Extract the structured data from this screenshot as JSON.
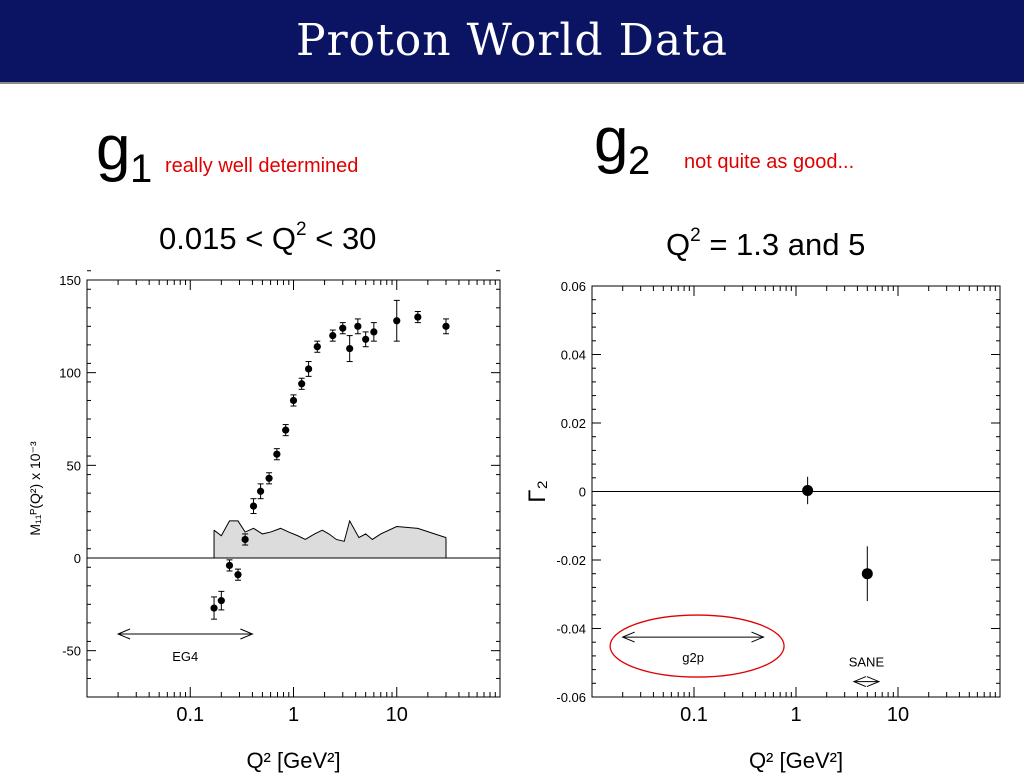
{
  "header": {
    "title": "Proton World Data"
  },
  "left_panel": {
    "g_letter": "g",
    "g_sub": "1",
    "note": "really well determined",
    "range_pre": "0.015 < Q",
    "range_sup": "2",
    "range_post": " < 30"
  },
  "right_panel": {
    "g_letter": "g",
    "g_sub": "2",
    "note": "not quite as good...",
    "range_pre": "Q",
    "range_sup": "2",
    "range_post": " = 1.3 and 5"
  },
  "chart_data": [
    {
      "type": "scatter",
      "xscale": "log",
      "xlim": [
        0.01,
        100
      ],
      "ylim": [
        -75,
        150
      ],
      "xlabel": "Q² [GeV²]",
      "ylabel": "M₁₁ᴾ(Q²) x 10⁻³",
      "xticks": [
        "0.1",
        "1",
        "10"
      ],
      "yticks": [
        -50,
        0,
        50,
        100,
        150
      ],
      "grid": false,
      "points": [
        {
          "x": 0.17,
          "y": -27,
          "err": 6
        },
        {
          "x": 0.2,
          "y": -23,
          "err": 5
        },
        {
          "x": 0.24,
          "y": -4,
          "err": 3
        },
        {
          "x": 0.29,
          "y": -9,
          "err": 3
        },
        {
          "x": 0.34,
          "y": 10,
          "err": 3
        },
        {
          "x": 0.41,
          "y": 28,
          "err": 4
        },
        {
          "x": 0.48,
          "y": 36,
          "err": 4
        },
        {
          "x": 0.58,
          "y": 43,
          "err": 3
        },
        {
          "x": 0.69,
          "y": 56,
          "err": 3
        },
        {
          "x": 0.84,
          "y": 69,
          "err": 3
        },
        {
          "x": 1.0,
          "y": 85,
          "err": 3
        },
        {
          "x": 1.2,
          "y": 94,
          "err": 3
        },
        {
          "x": 1.4,
          "y": 102,
          "err": 4
        },
        {
          "x": 1.7,
          "y": 114,
          "err": 3
        },
        {
          "x": 2.4,
          "y": 120,
          "err": 3
        },
        {
          "x": 3.0,
          "y": 124,
          "err": 3
        },
        {
          "x": 3.5,
          "y": 113,
          "err": 7
        },
        {
          "x": 4.2,
          "y": 125,
          "err": 4
        },
        {
          "x": 5.0,
          "y": 118,
          "err": 4
        },
        {
          "x": 6.0,
          "y": 122,
          "err": 5
        },
        {
          "x": 10.0,
          "y": 128,
          "err": 11
        },
        {
          "x": 16.0,
          "y": 130,
          "err": 3
        },
        {
          "x": 30.0,
          "y": 125,
          "err": 4
        }
      ],
      "systematic_band": [
        {
          "x": 0.17,
          "y": 15
        },
        {
          "x": 0.2,
          "y": 12
        },
        {
          "x": 0.24,
          "y": 20
        },
        {
          "x": 0.29,
          "y": 20
        },
        {
          "x": 0.34,
          "y": 14
        },
        {
          "x": 0.41,
          "y": 16
        },
        {
          "x": 0.5,
          "y": 13
        },
        {
          "x": 0.6,
          "y": 14
        },
        {
          "x": 0.75,
          "y": 16
        },
        {
          "x": 0.9,
          "y": 14
        },
        {
          "x": 1.1,
          "y": 12
        },
        {
          "x": 1.3,
          "y": 10
        },
        {
          "x": 1.6,
          "y": 13
        },
        {
          "x": 1.9,
          "y": 15
        },
        {
          "x": 2.2,
          "y": 13
        },
        {
          "x": 2.6,
          "y": 10
        },
        {
          "x": 3.1,
          "y": 9
        },
        {
          "x": 3.5,
          "y": 20
        },
        {
          "x": 4.3,
          "y": 11
        },
        {
          "x": 5.0,
          "y": 13
        },
        {
          "x": 5.8,
          "y": 10
        },
        {
          "x": 7.0,
          "y": 13
        },
        {
          "x": 10.0,
          "y": 17
        },
        {
          "x": 16.0,
          "y": 16
        },
        {
          "x": 30.0,
          "y": 11
        }
      ],
      "annotation": {
        "label": "EG4",
        "x_from": 0.02,
        "x_to": 0.4,
        "y": -41
      }
    },
    {
      "type": "scatter",
      "xscale": "log",
      "xlim": [
        0.01,
        100
      ],
      "ylim": [
        -0.06,
        0.06
      ],
      "xlabel": "Q² [GeV²]",
      "ylabel": "Γ₂",
      "xticks": [
        "0.1",
        "1",
        "10"
      ],
      "yticks": [
        "-0.06",
        "-0.04",
        "-0.02",
        "0",
        "0.02",
        "0.04",
        "0.06"
      ],
      "grid": false,
      "points": [
        {
          "x": 1.3,
          "y": 0.0003,
          "err": 0.004,
          "xerr": 0.08
        },
        {
          "x": 5.0,
          "y": -0.024,
          "err": 0.008
        }
      ],
      "annotations": [
        {
          "label": "g2p",
          "x_from": 0.02,
          "x_to": 0.48,
          "y": -0.0425,
          "circled": true
        },
        {
          "label": "SANE",
          "x_from": 3.7,
          "x_to": 6.5,
          "y": -0.0555
        }
      ]
    }
  ],
  "colors": {
    "title_bar": "#0a1463",
    "note": "#e00000",
    "band": "#dcdcdc",
    "ellipse": "#e00000"
  }
}
